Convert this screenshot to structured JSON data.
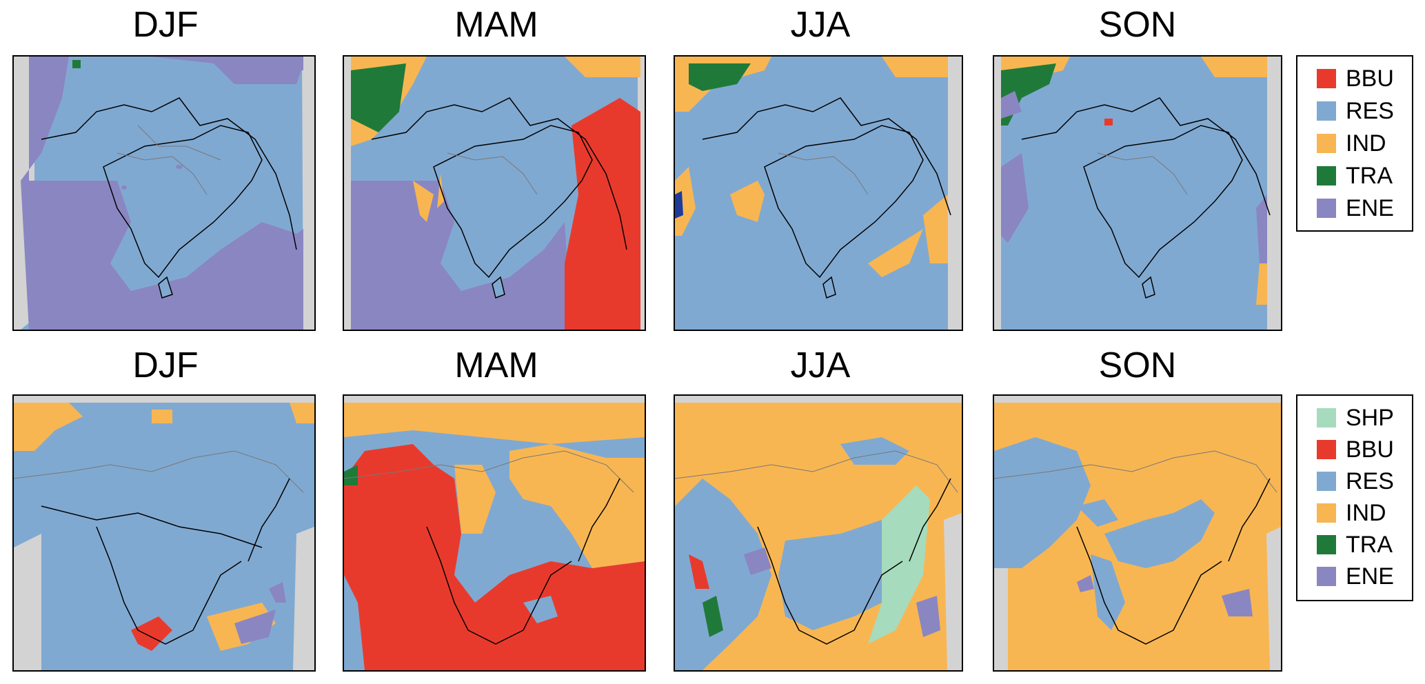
{
  "rows": [
    {
      "panels": [
        {
          "title": "DJF"
        },
        {
          "title": "MAM"
        },
        {
          "title": "JJA"
        },
        {
          "title": "SON"
        }
      ],
      "legend": [
        {
          "label": "BBU",
          "color": "#e83a2c"
        },
        {
          "label": "RES",
          "color": "#80a9d1"
        },
        {
          "label": "IND",
          "color": "#f8b652"
        },
        {
          "label": "TRA",
          "color": "#1f7a3a"
        },
        {
          "label": "ENE",
          "color": "#8a86c2"
        }
      ]
    },
    {
      "panels": [
        {
          "title": "DJF"
        },
        {
          "title": "MAM"
        },
        {
          "title": "JJA"
        },
        {
          "title": "SON"
        }
      ],
      "legend": [
        {
          "label": "SHP",
          "color": "#a6dbbd"
        },
        {
          "label": "BBU",
          "color": "#e83a2c"
        },
        {
          "label": "RES",
          "color": "#80a9d1"
        },
        {
          "label": "IND",
          "color": "#f8b652"
        },
        {
          "label": "TRA",
          "color": "#1f7a3a"
        },
        {
          "label": "ENE",
          "color": "#8a86c2"
        }
      ]
    }
  ],
  "colors": {
    "missing": "#d3d3d3",
    "border": "#000000",
    "admin_border": "#777777"
  }
}
